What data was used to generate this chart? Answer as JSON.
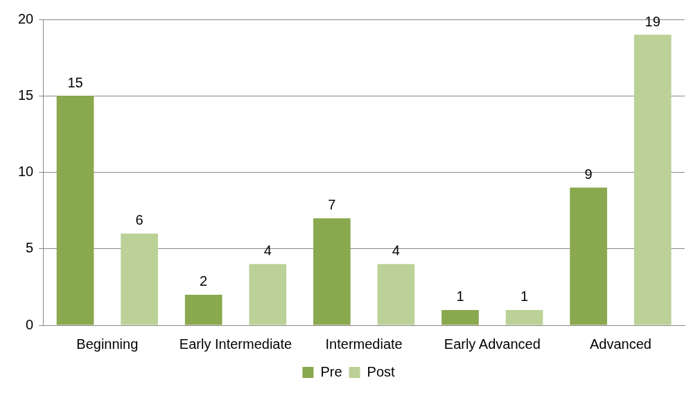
{
  "chart_data": {
    "type": "bar",
    "categories": [
      "Beginning",
      "Early Intermediate",
      "Intermediate",
      "Early Advanced",
      "Advanced"
    ],
    "series": [
      {
        "name": "Pre",
        "color": "#8aa84e",
        "values": [
          15,
          2,
          7,
          1,
          9
        ]
      },
      {
        "name": "Post",
        "color": "#bcd198",
        "values": [
          6,
          4,
          4,
          1,
          19
        ]
      }
    ],
    "ylim": [
      0,
      20
    ],
    "yticks": [
      0,
      5,
      10,
      15,
      20
    ],
    "grid": "y",
    "legend": "bottom",
    "data_labels": true
  }
}
